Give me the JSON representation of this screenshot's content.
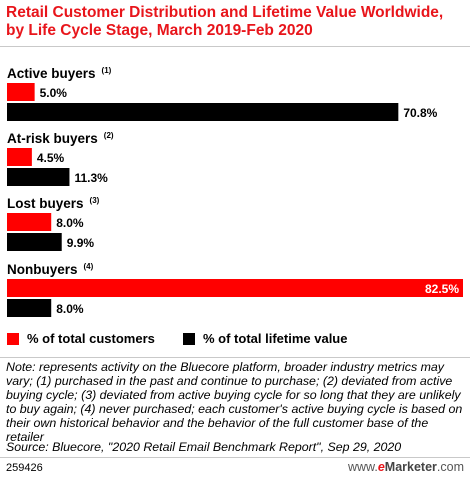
{
  "title": "Retail Customer Distribution and Lifetime Value Worldwide, by Life Cycle Stage, March 2019-Feb 2020",
  "colors": {
    "accent": "#e8151b",
    "customers": "#ff0000",
    "lifetime": "#000000",
    "outside_label": "#000000",
    "inside_label": "#ffffff"
  },
  "chart_data": {
    "type": "bar",
    "orientation": "horizontal",
    "categories": [
      "Active buyers",
      "At-risk buyers",
      "Lost buyers",
      "Nonbuyers"
    ],
    "footnotes": [
      "(1)",
      "(2)",
      "(3)",
      "(4)"
    ],
    "series": [
      {
        "name": "% of total customers",
        "values": [
          5.0,
          4.5,
          8.0,
          82.5
        ],
        "labels": [
          "5.0%",
          "4.5%",
          "8.0%",
          "82.5%"
        ]
      },
      {
        "name": "% of total lifetime value",
        "values": [
          70.8,
          11.3,
          9.9,
          8.0
        ],
        "labels": [
          "70.8%",
          "11.3%",
          "9.9%",
          "8.0%"
        ]
      }
    ],
    "xlim": [
      0,
      82.5
    ],
    "grid": false,
    "legend_position": "bottom"
  },
  "legend": {
    "customers": "% of total customers",
    "lifetime": "% of total lifetime value"
  },
  "note": "Note: represents activity on the Bluecore platform, broader industry metrics may vary; (1) purchased in the past and continue to purchase; (2) deviated from active buying cycle; (3) deviated from active buying cycle for so long that they are unlikely to buy again; (4) never purchased; each customer's active buying cycle is based on their own historical behavior and the behavior of the full customer base of the retailer",
  "source": "Source: Bluecore, \"2020 Retail Email Benchmark Report\", Sep 29, 2020",
  "chart_id": "259426",
  "brand": {
    "e": "e",
    "rest": "Marketer",
    "suffix": ".com",
    "prefix": "www."
  }
}
